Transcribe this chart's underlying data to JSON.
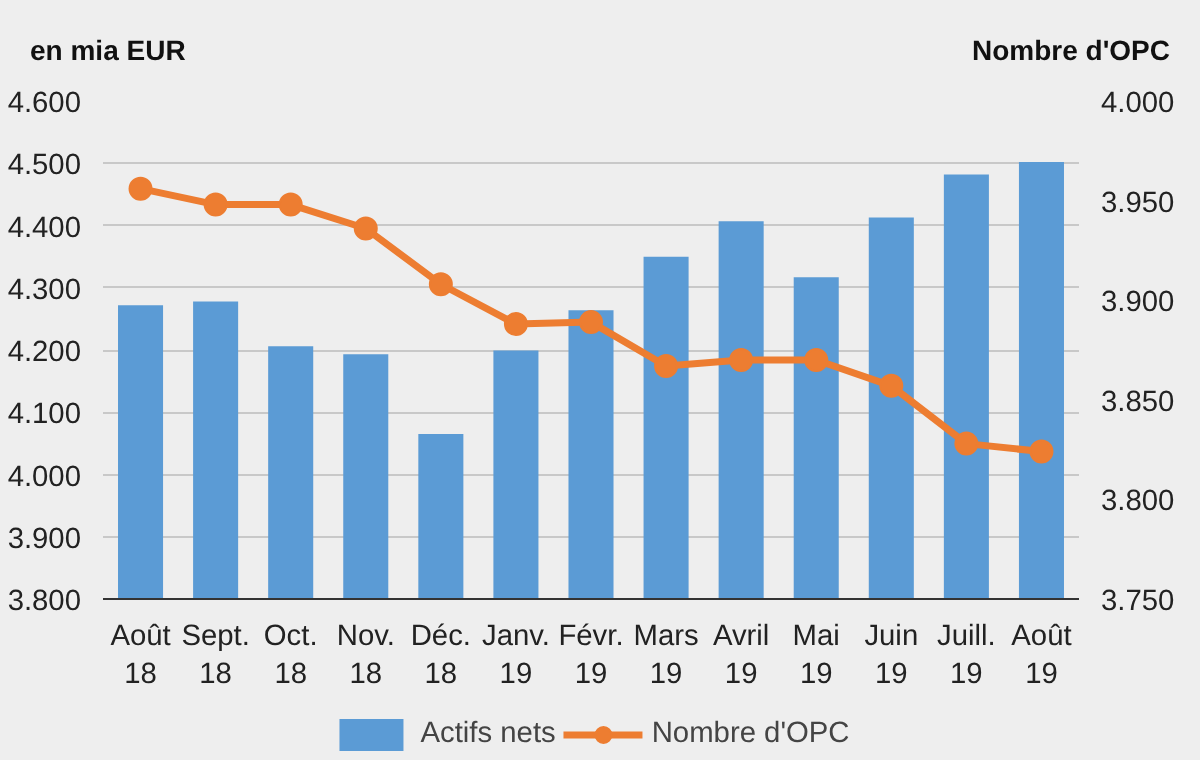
{
  "chart_data": {
    "type": "bar",
    "ylabel": "en mia EUR",
    "y2label": "Nombre d'OPC",
    "categories": [
      "Août 18",
      "Sept. 18",
      "Oct. 18",
      "Nov. 18",
      "Déc. 18",
      "Janv. 19",
      "Févr. 19",
      "Mars 19",
      "Avril 19",
      "Mai 19",
      "Juin 19",
      "Juill. 19",
      "Août 19"
    ],
    "series": [
      {
        "name": "Actifs nets",
        "color": "#5b9bd5",
        "values": [
          4272,
          4278,
          4206,
          4193,
          4065,
          4199,
          4264,
          4350,
          4407,
          4317,
          4413,
          4482,
          4502
        ]
      },
      {
        "name": "Nombre d'OPC",
        "type": "line",
        "axis": "y2",
        "color": "#ed7d31",
        "marker": "circle",
        "line_style": "solid",
        "values": [
          3956,
          3948,
          3948,
          3936,
          3908,
          3888,
          3889,
          3867,
          3870,
          3870,
          3857,
          3828,
          3824
        ]
      }
    ],
    "ylim": [
      3800,
      4600
    ],
    "yticks": [
      {
        "value": 3800,
        "label": "3.800"
      },
      {
        "value": 3900,
        "label": "3.900"
      },
      {
        "value": 4000,
        "label": "4.000"
      },
      {
        "value": 4100,
        "label": "4.100"
      },
      {
        "value": 4200,
        "label": "4.200"
      },
      {
        "value": 4300,
        "label": "4.300"
      },
      {
        "value": 4400,
        "label": "4.400"
      },
      {
        "value": 4500,
        "label": "4.500"
      },
      {
        "value": 4600,
        "label": "4.600"
      }
    ],
    "y2lim": [
      3750,
      4000
    ],
    "y2ticks": [
      {
        "value": 3750,
        "label": "3.750"
      },
      {
        "value": 3800,
        "label": "3.800"
      },
      {
        "value": 3850,
        "label": "3.850"
      },
      {
        "value": 3900,
        "label": "3.900"
      },
      {
        "value": 3950,
        "label": "3.950"
      },
      {
        "value": 4000,
        "label": "4.000"
      }
    ],
    "grid": "y",
    "legend": "bottom"
  }
}
